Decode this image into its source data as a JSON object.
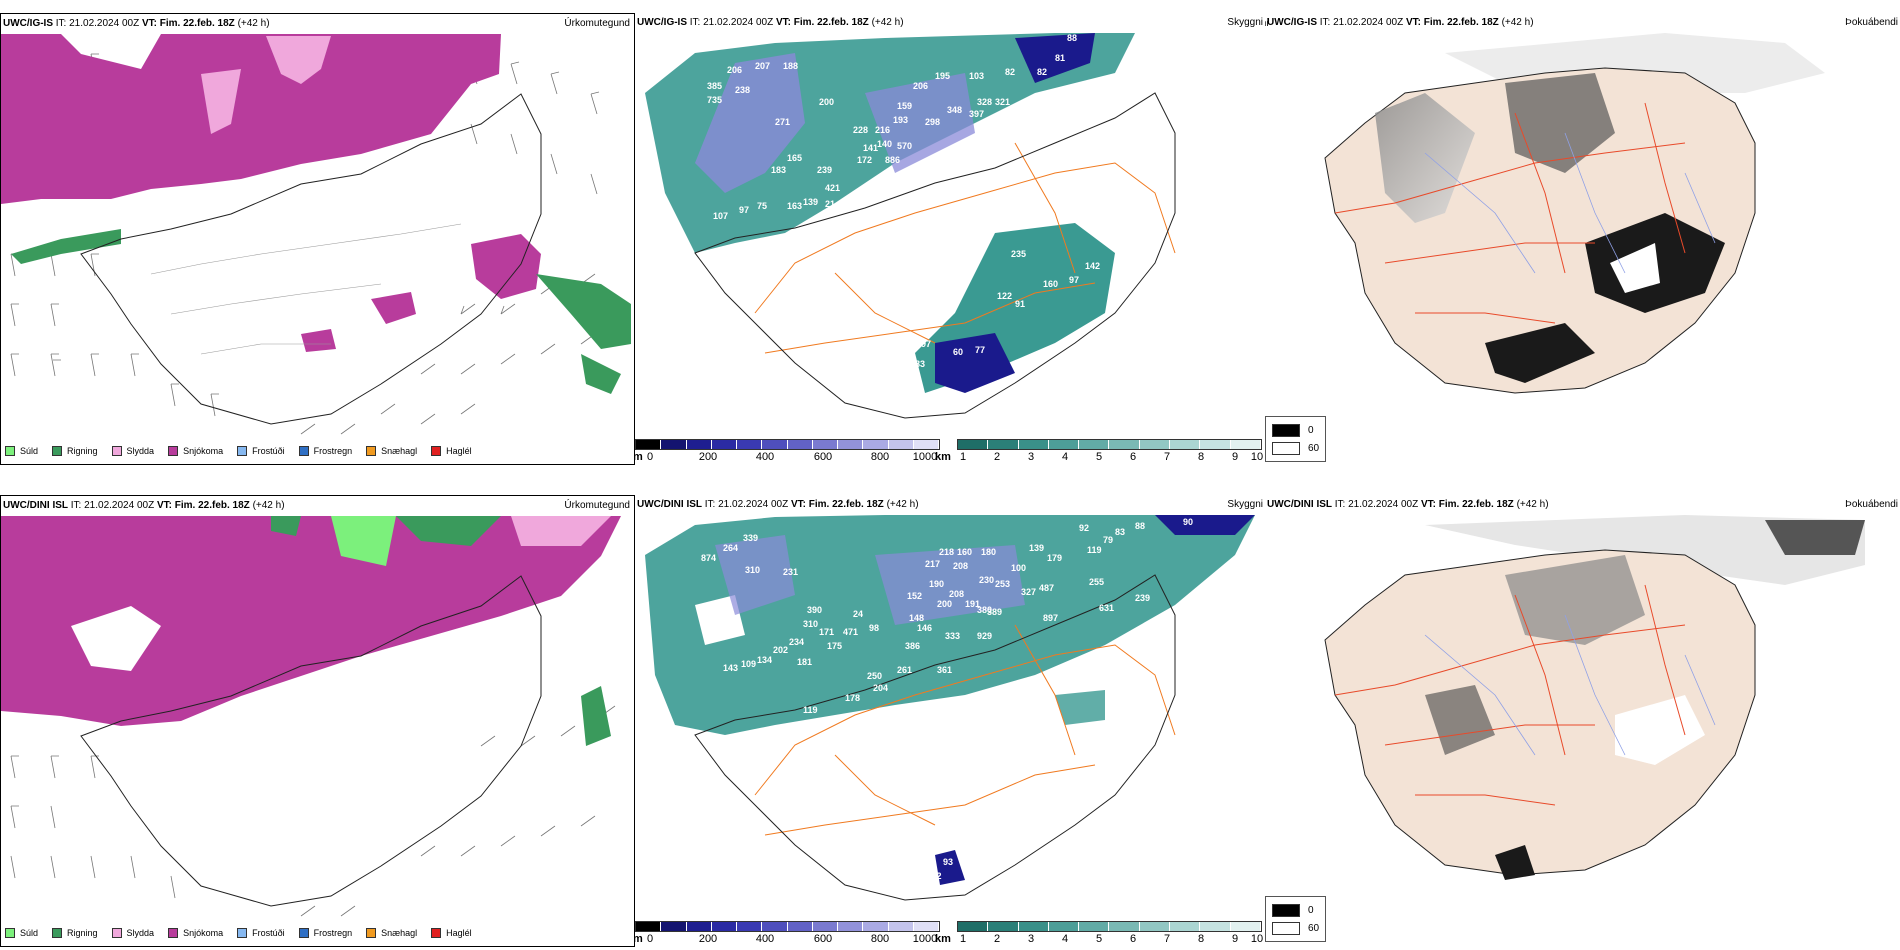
{
  "colors": {
    "snow": "#b83c9c",
    "sleet": "#f0a8dc",
    "rain": "#3a9a5c",
    "drizzle": "#7cf07c",
    "freezing_drizzle": "#86b8f0",
    "freezing_rain": "#2f6fc4",
    "snow_pellets": "#f09a20",
    "hail": "#e02020",
    "teal": "#3a9a92",
    "navy": "#1a1a8c",
    "roads": "#f07a20",
    "land_fog": "#f3e3d6",
    "fog_roads": "#e84a2a",
    "fog_rivers": "#8fa0e6"
  },
  "precip_legend": [
    {
      "label": "Súld",
      "color": "#7cf07c"
    },
    {
      "label": "Rigning",
      "color": "#3a9a5c"
    },
    {
      "label": "Slydda",
      "color": "#f0a8dc"
    },
    {
      "label": "Snjókoma",
      "color": "#b83c9c"
    },
    {
      "label": "Frostúði",
      "color": "#86b8f0"
    },
    {
      "label": "Frostregn",
      "color": "#2f6fc4"
    },
    {
      "label": "Snæhagl",
      "color": "#f09a20"
    },
    {
      "label": "Haglél",
      "color": "#e02020"
    }
  ],
  "rows": [
    {
      "model": "UWC/IG-IS",
      "it_label": "IT:",
      "it_value": "21.02.2024 00Z",
      "vt_label": "VT:",
      "vt_value": "Fim. 22.feb. 18Z",
      "lead": "(+42 h)",
      "types": [
        "Úrkomutegund",
        "Skyggni",
        "Þokuábendi"
      ]
    },
    {
      "model": "UWC/DINI ISL",
      "it_label": "IT:",
      "it_value": "21.02.2024 00Z",
      "vt_label": "VT:",
      "vt_value": "Fim. 22.feb. 18Z",
      "lead": "(+42 h)",
      "types": [
        "Úrkomutegund",
        "Skyggni",
        "Þokuábendi"
      ]
    }
  ],
  "cbar_m": {
    "unit": "m",
    "ticks": [
      "0",
      "200",
      "400",
      "600",
      "800",
      "1000"
    ]
  },
  "cbar_km": {
    "unit": "km",
    "ticks": [
      "1",
      "2",
      "3",
      "4",
      "5",
      "6",
      "7",
      "8",
      "9",
      "10"
    ]
  },
  "fog_legend": [
    {
      "label": "0"
    },
    {
      "label": "60"
    }
  ],
  "top_visibility_labels": [
    "88",
    "81",
    "82",
    "82",
    "195",
    "103",
    "206",
    "328",
    "321",
    "348",
    "397",
    "298",
    "159",
    "193",
    "570",
    "140",
    "216",
    "228",
    "141",
    "886",
    "172",
    "200",
    "271",
    "165",
    "183",
    "239",
    "421",
    "21",
    "139",
    "163",
    "75",
    "107",
    "97",
    "207",
    "188",
    "206",
    "238",
    "735",
    "385",
    "235",
    "191",
    "166",
    "281",
    "142",
    "97",
    "122",
    "160",
    "91",
    "77",
    "60",
    "83",
    "97"
  ],
  "bottom_visibility_labels": [
    "90",
    "92",
    "88",
    "83",
    "79",
    "119",
    "139",
    "179",
    "100",
    "180",
    "218",
    "160",
    "208",
    "217",
    "230",
    "253",
    "327",
    "487",
    "255",
    "631",
    "239",
    "389",
    "152",
    "190",
    "200",
    "148",
    "191",
    "208",
    "380",
    "897",
    "146",
    "333",
    "929",
    "386",
    "24",
    "98",
    "471",
    "171",
    "175",
    "310",
    "390",
    "234",
    "202",
    "181",
    "250",
    "204",
    "261",
    "361",
    "178",
    "119",
    "143",
    "109",
    "134",
    "231",
    "310",
    "264",
    "339",
    "874",
    "93",
    "112",
    "110"
  ]
}
